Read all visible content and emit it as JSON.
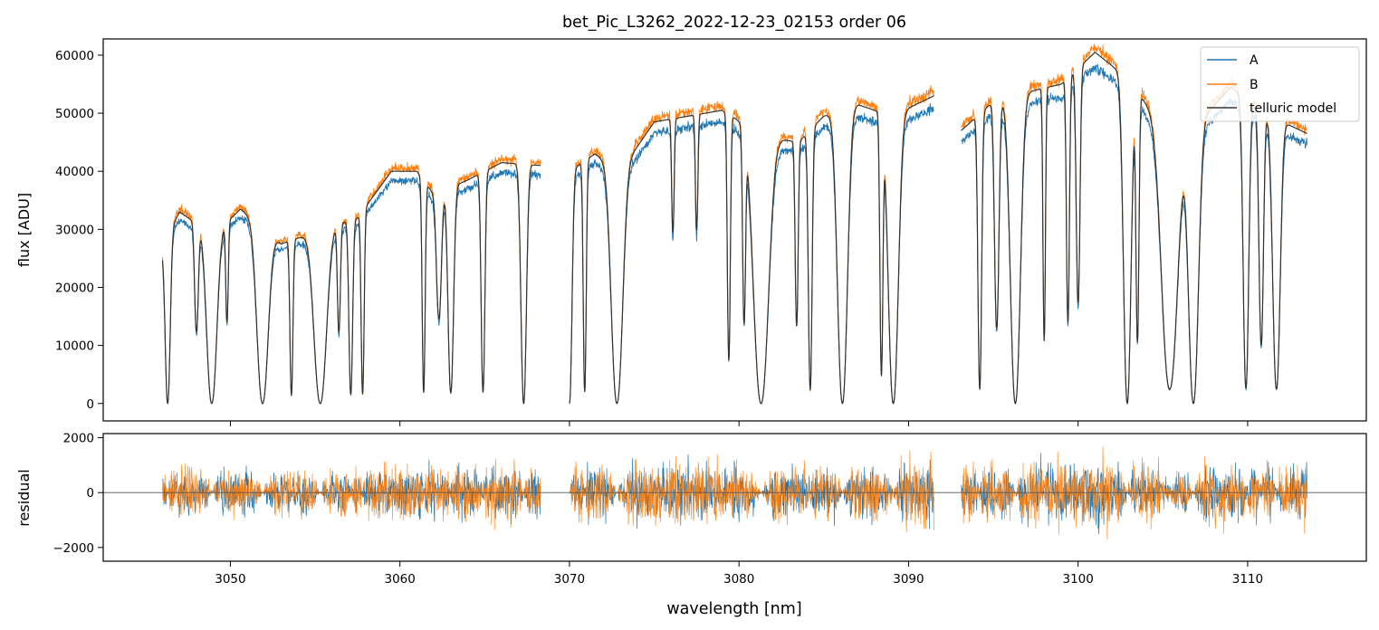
{
  "chart_data": [
    {
      "panel": "top",
      "type": "line",
      "title": "bet_Pic_L3262_2022-12-23_02153  order 06",
      "xlabel": "",
      "ylabel": "flux [ADU]",
      "xlim": [
        3042.5,
        3117
      ],
      "ylim": [
        -3000,
        62800
      ],
      "xticks": [
        3050,
        3060,
        3070,
        3080,
        3090,
        3100,
        3110
      ],
      "yticks": [
        0,
        10000,
        20000,
        30000,
        40000,
        50000,
        60000
      ],
      "yticklabels": [
        "0",
        "10000",
        "20000",
        "30000",
        "40000",
        "50000",
        "60000"
      ],
      "legend": {
        "position": "top-right",
        "entries": [
          "A",
          "B",
          "telluric model"
        ]
      },
      "grid": false,
      "segments": [
        {
          "x0": 3046.0,
          "x1": 3068.3
        },
        {
          "x0": 3070.0,
          "x1": 3091.5
        },
        {
          "x0": 3093.1,
          "x1": 3113.5
        }
      ],
      "continuum_model": [
        [
          3046.0,
          27000
        ],
        [
          3047.0,
          33000
        ],
        [
          3049.0,
          29000
        ],
        [
          3050.6,
          33500
        ],
        [
          3053.0,
          27500
        ],
        [
          3055.5,
          30000
        ],
        [
          3057.5,
          32000
        ],
        [
          3059.5,
          40000
        ],
        [
          3061.0,
          40000
        ],
        [
          3062.0,
          36000
        ],
        [
          3064.0,
          38500
        ],
        [
          3066.0,
          41500
        ],
        [
          3068.3,
          41000
        ],
        [
          3070.0,
          40000
        ],
        [
          3071.5,
          43000
        ],
        [
          3073.0,
          40000
        ],
        [
          3075.0,
          48500
        ],
        [
          3077.0,
          49500
        ],
        [
          3079.0,
          50500
        ],
        [
          3081.5,
          46000
        ],
        [
          3083.5,
          45000
        ],
        [
          3085.0,
          49500
        ],
        [
          3087.0,
          51500
        ],
        [
          3089.0,
          49500
        ],
        [
          3091.5,
          53000
        ],
        [
          3093.1,
          47000
        ],
        [
          3095.0,
          52000
        ],
        [
          3097.5,
          54000
        ],
        [
          3099.0,
          55000
        ],
        [
          3101.0,
          60500
        ],
        [
          3102.5,
          57000
        ],
        [
          3104.5,
          50000
        ],
        [
          3107.0,
          48000
        ],
        [
          3109.0,
          54500
        ],
        [
          3111.0,
          50000
        ],
        [
          3113.5,
          46500
        ]
      ],
      "absorption_lines": [
        [
          3046.3,
          1.0,
          0.2
        ],
        [
          3048.0,
          0.6,
          0.15
        ],
        [
          3048.9,
          1.0,
          0.4
        ],
        [
          3049.8,
          0.55,
          0.1
        ],
        [
          3051.9,
          1.0,
          0.45
        ],
        [
          3053.6,
          0.95,
          0.12
        ],
        [
          3055.3,
          1.0,
          0.5
        ],
        [
          3056.4,
          0.6,
          0.12
        ],
        [
          3057.1,
          0.95,
          0.15
        ],
        [
          3057.8,
          0.95,
          0.12
        ],
        [
          3061.4,
          0.95,
          0.12
        ],
        [
          3062.3,
          0.6,
          0.2
        ],
        [
          3063.0,
          0.95,
          0.22
        ],
        [
          3064.9,
          0.95,
          0.15
        ],
        [
          3067.3,
          1.0,
          0.22
        ],
        [
          3070.0,
          1.0,
          0.2
        ],
        [
          3070.9,
          0.95,
          0.12
        ],
        [
          3072.8,
          1.0,
          0.45
        ],
        [
          3076.1,
          0.4,
          0.1
        ],
        [
          3077.5,
          0.4,
          0.1
        ],
        [
          3079.4,
          0.85,
          0.12
        ],
        [
          3080.3,
          0.7,
          0.12
        ],
        [
          3081.3,
          1.0,
          0.6
        ],
        [
          3083.4,
          0.7,
          0.12
        ],
        [
          3084.2,
          0.95,
          0.15
        ],
        [
          3086.1,
          1.0,
          0.4
        ],
        [
          3088.4,
          0.9,
          0.12
        ],
        [
          3089.1,
          1.0,
          0.4
        ],
        [
          3094.2,
          0.95,
          0.15
        ],
        [
          3095.2,
          0.75,
          0.18
        ],
        [
          3096.3,
          1.0,
          0.4
        ],
        [
          3098.0,
          0.8,
          0.1
        ],
        [
          3099.4,
          0.75,
          0.12
        ],
        [
          3100.0,
          0.7,
          0.15
        ],
        [
          3102.9,
          1.0,
          0.3
        ],
        [
          3103.5,
          0.8,
          0.12
        ],
        [
          3105.4,
          0.95,
          0.65
        ],
        [
          3106.8,
          1.0,
          0.4
        ],
        [
          3109.9,
          0.95,
          0.22
        ],
        [
          3110.8,
          0.8,
          0.18
        ],
        [
          3111.7,
          0.95,
          0.3
        ]
      ],
      "series": [
        {
          "name": "A",
          "color": "#1f77b4",
          "continuum_scale": 0.96
        },
        {
          "name": "B",
          "color": "#ff7f0e",
          "continuum_scale": 1.015
        },
        {
          "name": "telluric model",
          "color": "#333333",
          "continuum_scale": 1.0
        }
      ]
    },
    {
      "panel": "bottom",
      "type": "line",
      "xlabel": "wavelength [nm]",
      "ylabel": "residual",
      "xlim": [
        3042.5,
        3117
      ],
      "ylim": [
        -2500,
        2150
      ],
      "xticks": [
        3050,
        3060,
        3070,
        3080,
        3090,
        3100,
        3110
      ],
      "xticklabels": [
        "3050",
        "3060",
        "3070",
        "3080",
        "3090",
        "3100",
        "3110"
      ],
      "yticks": [
        -2000,
        0,
        2000
      ],
      "yticklabels": [
        "−2000",
        "0",
        "2000"
      ],
      "zero_line": true,
      "residual_amplitude": 900,
      "series": [
        {
          "name": "A",
          "color": "#1f77b4"
        },
        {
          "name": "B",
          "color": "#ff7f0e"
        }
      ]
    }
  ]
}
